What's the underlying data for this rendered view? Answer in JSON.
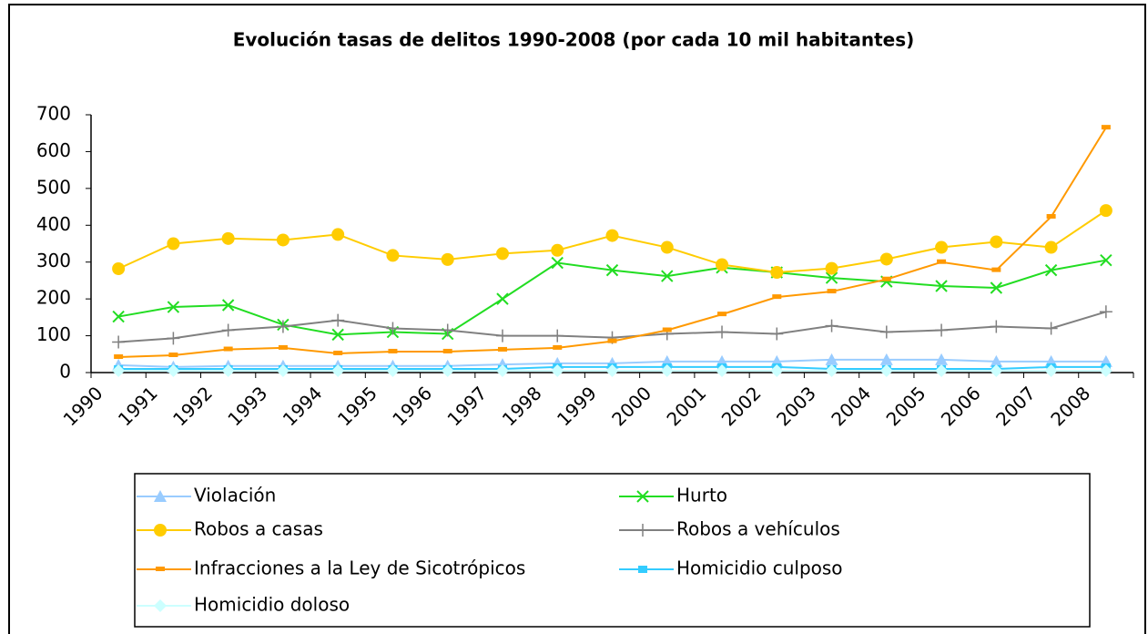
{
  "chart_data": {
    "type": "line",
    "title": "Evolución tasas de delitos 1990-2008 (por cada 10 mil habitantes)",
    "categories": [
      "1990",
      "1991",
      "1992",
      "1993",
      "1994",
      "1995",
      "1996",
      "1997",
      "1998",
      "1999",
      "2000",
      "2001",
      "2002",
      "2003",
      "2004",
      "2005",
      "2006",
      "2007",
      "2008"
    ],
    "ylim": [
      0,
      700
    ],
    "yticks": [
      0,
      100,
      200,
      300,
      400,
      500,
      600,
      700
    ],
    "grid": false,
    "series": [
      {
        "name": "Violación",
        "color": "#99ccff",
        "marker": "triangle",
        "values": [
          20,
          15,
          18,
          18,
          18,
          18,
          18,
          22,
          25,
          25,
          30,
          30,
          30,
          35,
          35,
          35,
          30,
          30,
          30
        ]
      },
      {
        "name": "Hurto",
        "color": "#22dd22",
        "marker": "x",
        "values": [
          152,
          178,
          183,
          130,
          103,
          110,
          105,
          200,
          298,
          278,
          262,
          285,
          272,
          257,
          247,
          235,
          230,
          278,
          305
        ]
      },
      {
        "name": "Robos a casas",
        "color": "#ffcc00",
        "marker": "circle",
        "values": [
          282,
          350,
          364,
          360,
          375,
          318,
          307,
          323,
          332,
          372,
          340,
          293,
          272,
          283,
          308,
          340,
          355,
          340,
          440
        ]
      },
      {
        "name": "Robos a vehículos",
        "color": "#808080",
        "marker": "plus",
        "values": [
          83,
          93,
          115,
          125,
          142,
          120,
          115,
          100,
          100,
          95,
          105,
          110,
          105,
          127,
          110,
          115,
          125,
          120,
          165
        ]
      },
      {
        "name": "Infracciones a la Ley de Sicotrópicos",
        "color": "#ff9900",
        "marker": "dash",
        "values": [
          42,
          47,
          63,
          67,
          52,
          57,
          57,
          62,
          67,
          85,
          115,
          158,
          205,
          220,
          253,
          300,
          278,
          423,
          665
        ]
      },
      {
        "name": "Homicidio culposo",
        "color": "#33ccff",
        "marker": "square",
        "values": [
          10,
          10,
          10,
          10,
          10,
          10,
          10,
          10,
          15,
          15,
          15,
          15,
          15,
          10,
          10,
          10,
          10,
          15,
          15
        ]
      },
      {
        "name": "Homicidio doloso",
        "color": "#ccffff",
        "marker": "diamond",
        "values": [
          5,
          5,
          5,
          5,
          5,
          5,
          5,
          5,
          5,
          5,
          5,
          5,
          5,
          5,
          5,
          5,
          5,
          5,
          5
        ]
      }
    ]
  }
}
